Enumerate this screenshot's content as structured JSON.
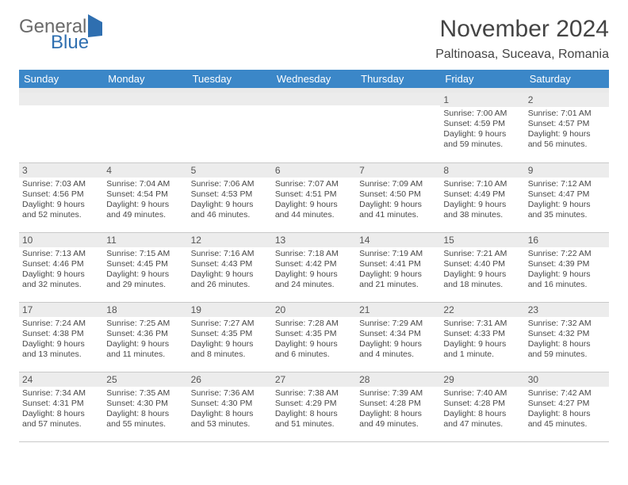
{
  "logo": {
    "part1": "General",
    "part2": "Blue"
  },
  "title": "November 2024",
  "location": "Paltinoasa, Suceava, Romania",
  "header_bg": "#3b87c8",
  "header_fg": "#ffffff",
  "daynum_bg": "#ececec",
  "text_color": "#484848",
  "weekdays": [
    "Sunday",
    "Monday",
    "Tuesday",
    "Wednesday",
    "Thursday",
    "Friday",
    "Saturday"
  ],
  "weeks": [
    [
      null,
      null,
      null,
      null,
      null,
      {
        "n": "1",
        "sr": "Sunrise: 7:00 AM",
        "ss": "Sunset: 4:59 PM",
        "d1": "Daylight: 9 hours",
        "d2": "and 59 minutes."
      },
      {
        "n": "2",
        "sr": "Sunrise: 7:01 AM",
        "ss": "Sunset: 4:57 PM",
        "d1": "Daylight: 9 hours",
        "d2": "and 56 minutes."
      }
    ],
    [
      {
        "n": "3",
        "sr": "Sunrise: 7:03 AM",
        "ss": "Sunset: 4:56 PM",
        "d1": "Daylight: 9 hours",
        "d2": "and 52 minutes."
      },
      {
        "n": "4",
        "sr": "Sunrise: 7:04 AM",
        "ss": "Sunset: 4:54 PM",
        "d1": "Daylight: 9 hours",
        "d2": "and 49 minutes."
      },
      {
        "n": "5",
        "sr": "Sunrise: 7:06 AM",
        "ss": "Sunset: 4:53 PM",
        "d1": "Daylight: 9 hours",
        "d2": "and 46 minutes."
      },
      {
        "n": "6",
        "sr": "Sunrise: 7:07 AM",
        "ss": "Sunset: 4:51 PM",
        "d1": "Daylight: 9 hours",
        "d2": "and 44 minutes."
      },
      {
        "n": "7",
        "sr": "Sunrise: 7:09 AM",
        "ss": "Sunset: 4:50 PM",
        "d1": "Daylight: 9 hours",
        "d2": "and 41 minutes."
      },
      {
        "n": "8",
        "sr": "Sunrise: 7:10 AM",
        "ss": "Sunset: 4:49 PM",
        "d1": "Daylight: 9 hours",
        "d2": "and 38 minutes."
      },
      {
        "n": "9",
        "sr": "Sunrise: 7:12 AM",
        "ss": "Sunset: 4:47 PM",
        "d1": "Daylight: 9 hours",
        "d2": "and 35 minutes."
      }
    ],
    [
      {
        "n": "10",
        "sr": "Sunrise: 7:13 AM",
        "ss": "Sunset: 4:46 PM",
        "d1": "Daylight: 9 hours",
        "d2": "and 32 minutes."
      },
      {
        "n": "11",
        "sr": "Sunrise: 7:15 AM",
        "ss": "Sunset: 4:45 PM",
        "d1": "Daylight: 9 hours",
        "d2": "and 29 minutes."
      },
      {
        "n": "12",
        "sr": "Sunrise: 7:16 AM",
        "ss": "Sunset: 4:43 PM",
        "d1": "Daylight: 9 hours",
        "d2": "and 26 minutes."
      },
      {
        "n": "13",
        "sr": "Sunrise: 7:18 AM",
        "ss": "Sunset: 4:42 PM",
        "d1": "Daylight: 9 hours",
        "d2": "and 24 minutes."
      },
      {
        "n": "14",
        "sr": "Sunrise: 7:19 AM",
        "ss": "Sunset: 4:41 PM",
        "d1": "Daylight: 9 hours",
        "d2": "and 21 minutes."
      },
      {
        "n": "15",
        "sr": "Sunrise: 7:21 AM",
        "ss": "Sunset: 4:40 PM",
        "d1": "Daylight: 9 hours",
        "d2": "and 18 minutes."
      },
      {
        "n": "16",
        "sr": "Sunrise: 7:22 AM",
        "ss": "Sunset: 4:39 PM",
        "d1": "Daylight: 9 hours",
        "d2": "and 16 minutes."
      }
    ],
    [
      {
        "n": "17",
        "sr": "Sunrise: 7:24 AM",
        "ss": "Sunset: 4:38 PM",
        "d1": "Daylight: 9 hours",
        "d2": "and 13 minutes."
      },
      {
        "n": "18",
        "sr": "Sunrise: 7:25 AM",
        "ss": "Sunset: 4:36 PM",
        "d1": "Daylight: 9 hours",
        "d2": "and 11 minutes."
      },
      {
        "n": "19",
        "sr": "Sunrise: 7:27 AM",
        "ss": "Sunset: 4:35 PM",
        "d1": "Daylight: 9 hours",
        "d2": "and 8 minutes."
      },
      {
        "n": "20",
        "sr": "Sunrise: 7:28 AM",
        "ss": "Sunset: 4:35 PM",
        "d1": "Daylight: 9 hours",
        "d2": "and 6 minutes."
      },
      {
        "n": "21",
        "sr": "Sunrise: 7:29 AM",
        "ss": "Sunset: 4:34 PM",
        "d1": "Daylight: 9 hours",
        "d2": "and 4 minutes."
      },
      {
        "n": "22",
        "sr": "Sunrise: 7:31 AM",
        "ss": "Sunset: 4:33 PM",
        "d1": "Daylight: 9 hours",
        "d2": "and 1 minute."
      },
      {
        "n": "23",
        "sr": "Sunrise: 7:32 AM",
        "ss": "Sunset: 4:32 PM",
        "d1": "Daylight: 8 hours",
        "d2": "and 59 minutes."
      }
    ],
    [
      {
        "n": "24",
        "sr": "Sunrise: 7:34 AM",
        "ss": "Sunset: 4:31 PM",
        "d1": "Daylight: 8 hours",
        "d2": "and 57 minutes."
      },
      {
        "n": "25",
        "sr": "Sunrise: 7:35 AM",
        "ss": "Sunset: 4:30 PM",
        "d1": "Daylight: 8 hours",
        "d2": "and 55 minutes."
      },
      {
        "n": "26",
        "sr": "Sunrise: 7:36 AM",
        "ss": "Sunset: 4:30 PM",
        "d1": "Daylight: 8 hours",
        "d2": "and 53 minutes."
      },
      {
        "n": "27",
        "sr": "Sunrise: 7:38 AM",
        "ss": "Sunset: 4:29 PM",
        "d1": "Daylight: 8 hours",
        "d2": "and 51 minutes."
      },
      {
        "n": "28",
        "sr": "Sunrise: 7:39 AM",
        "ss": "Sunset: 4:28 PM",
        "d1": "Daylight: 8 hours",
        "d2": "and 49 minutes."
      },
      {
        "n": "29",
        "sr": "Sunrise: 7:40 AM",
        "ss": "Sunset: 4:28 PM",
        "d1": "Daylight: 8 hours",
        "d2": "and 47 minutes."
      },
      {
        "n": "30",
        "sr": "Sunrise: 7:42 AM",
        "ss": "Sunset: 4:27 PM",
        "d1": "Daylight: 8 hours",
        "d2": "and 45 minutes."
      }
    ]
  ]
}
